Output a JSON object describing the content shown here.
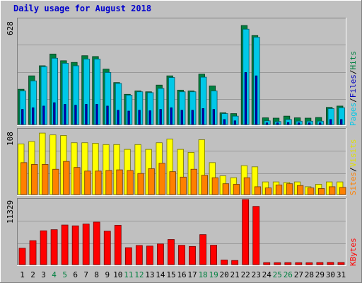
{
  "title": "Daily usage for August 2018",
  "colors": {
    "title": "#0000cc",
    "hits": "#008040",
    "files": "#00c8e8",
    "pages": "#0000c0",
    "visits": "#ffff00",
    "sites": "#ff8000",
    "kbytes": "#ff0000",
    "weekend": "#008040",
    "weekday": "#000000",
    "grid": "#999999"
  },
  "legend": {
    "top": {
      "pages": "Pages",
      "files": "Files",
      "hits": "Hits",
      "sep": "/"
    },
    "middle": {
      "sites": "Sites",
      "visits": "Visits",
      "sep": "/"
    },
    "bottom": {
      "kbytes": "KBytes"
    }
  },
  "chart_data": [
    {
      "type": "bar",
      "panel": "top",
      "ymax_label": "628",
      "ylim": [
        0,
        628
      ],
      "categories": [
        "1",
        "2",
        "3",
        "4",
        "5",
        "6",
        "7",
        "8",
        "9",
        "10",
        "11",
        "12",
        "13",
        "14",
        "15",
        "16",
        "17",
        "18",
        "19",
        "20",
        "21",
        "22",
        "23",
        "24",
        "25",
        "26",
        "27",
        "28",
        "29",
        "30",
        "31"
      ],
      "weekend_days": [
        "4",
        "5",
        "11",
        "12",
        "18",
        "19",
        "25",
        "26"
      ],
      "series": [
        {
          "name": "Hits",
          "values": [
            210,
            290,
            350,
            420,
            380,
            370,
            410,
            405,
            330,
            250,
            180,
            200,
            195,
            235,
            290,
            205,
            200,
            300,
            230,
            70,
            65,
            590,
            530,
            40,
            38,
            50,
            40,
            38,
            42,
            102,
            110
          ]
        },
        {
          "name": "Files",
          "values": [
            200,
            260,
            345,
            395,
            365,
            350,
            390,
            390,
            310,
            245,
            175,
            195,
            190,
            215,
            280,
            195,
            195,
            282,
            200,
            65,
            50,
            568,
            520,
            22,
            18,
            30,
            20,
            20,
            20,
            95,
            100
          ]
        },
        {
          "name": "Pages",
          "values": [
            90,
            100,
            110,
            130,
            120,
            115,
            120,
            120,
            110,
            85,
            80,
            85,
            82,
            90,
            100,
            85,
            85,
            95,
            90,
            30,
            22,
            310,
            290,
            10,
            10,
            12,
            10,
            10,
            10,
            30,
            30
          ]
        }
      ]
    },
    {
      "type": "bar",
      "panel": "middle",
      "ymax_label": "108",
      "ylim": [
        0,
        108
      ],
      "categories": [
        "1",
        "2",
        "3",
        "4",
        "5",
        "6",
        "7",
        "8",
        "9",
        "10",
        "11",
        "12",
        "13",
        "14",
        "15",
        "16",
        "17",
        "18",
        "19",
        "20",
        "21",
        "22",
        "23",
        "24",
        "25",
        "26",
        "27",
        "28",
        "29",
        "30",
        "31"
      ],
      "series": [
        {
          "name": "Visits",
          "values": [
            84,
            88,
            102,
            99,
            98,
            86,
            86,
            85,
            83,
            83,
            75,
            83,
            75,
            86,
            92,
            75,
            70,
            91,
            53,
            31,
            28,
            48,
            46,
            21,
            21,
            20,
            21,
            13,
            17,
            21,
            21
          ]
        },
        {
          "name": "Sites",
          "values": [
            53,
            50,
            50,
            42,
            55,
            45,
            39,
            39,
            40,
            41,
            40,
            35,
            43,
            52,
            38,
            29,
            42,
            32,
            28,
            18,
            17,
            28,
            13,
            11,
            16,
            18,
            15,
            11,
            10,
            13,
            12
          ]
        }
      ]
    },
    {
      "type": "bar",
      "panel": "bottom",
      "ymax_label": "11329",
      "ylim": [
        0,
        11329
      ],
      "categories": [
        "1",
        "2",
        "3",
        "4",
        "5",
        "6",
        "7",
        "8",
        "9",
        "10",
        "11",
        "12",
        "13",
        "14",
        "15",
        "16",
        "17",
        "18",
        "19",
        "20",
        "21",
        "22",
        "23",
        "24",
        "25",
        "26",
        "27",
        "28",
        "29",
        "30",
        "31"
      ],
      "series": [
        {
          "name": "KBytes",
          "values": [
            2850,
            4170,
            5890,
            6080,
            6890,
            6750,
            7060,
            7400,
            5820,
            6850,
            2950,
            3330,
            3230,
            3600,
            4370,
            3360,
            3160,
            5220,
            3370,
            800,
            720,
            11329,
            10130,
            350,
            340,
            350,
            340,
            330,
            360,
            380,
            370
          ]
        }
      ]
    }
  ]
}
